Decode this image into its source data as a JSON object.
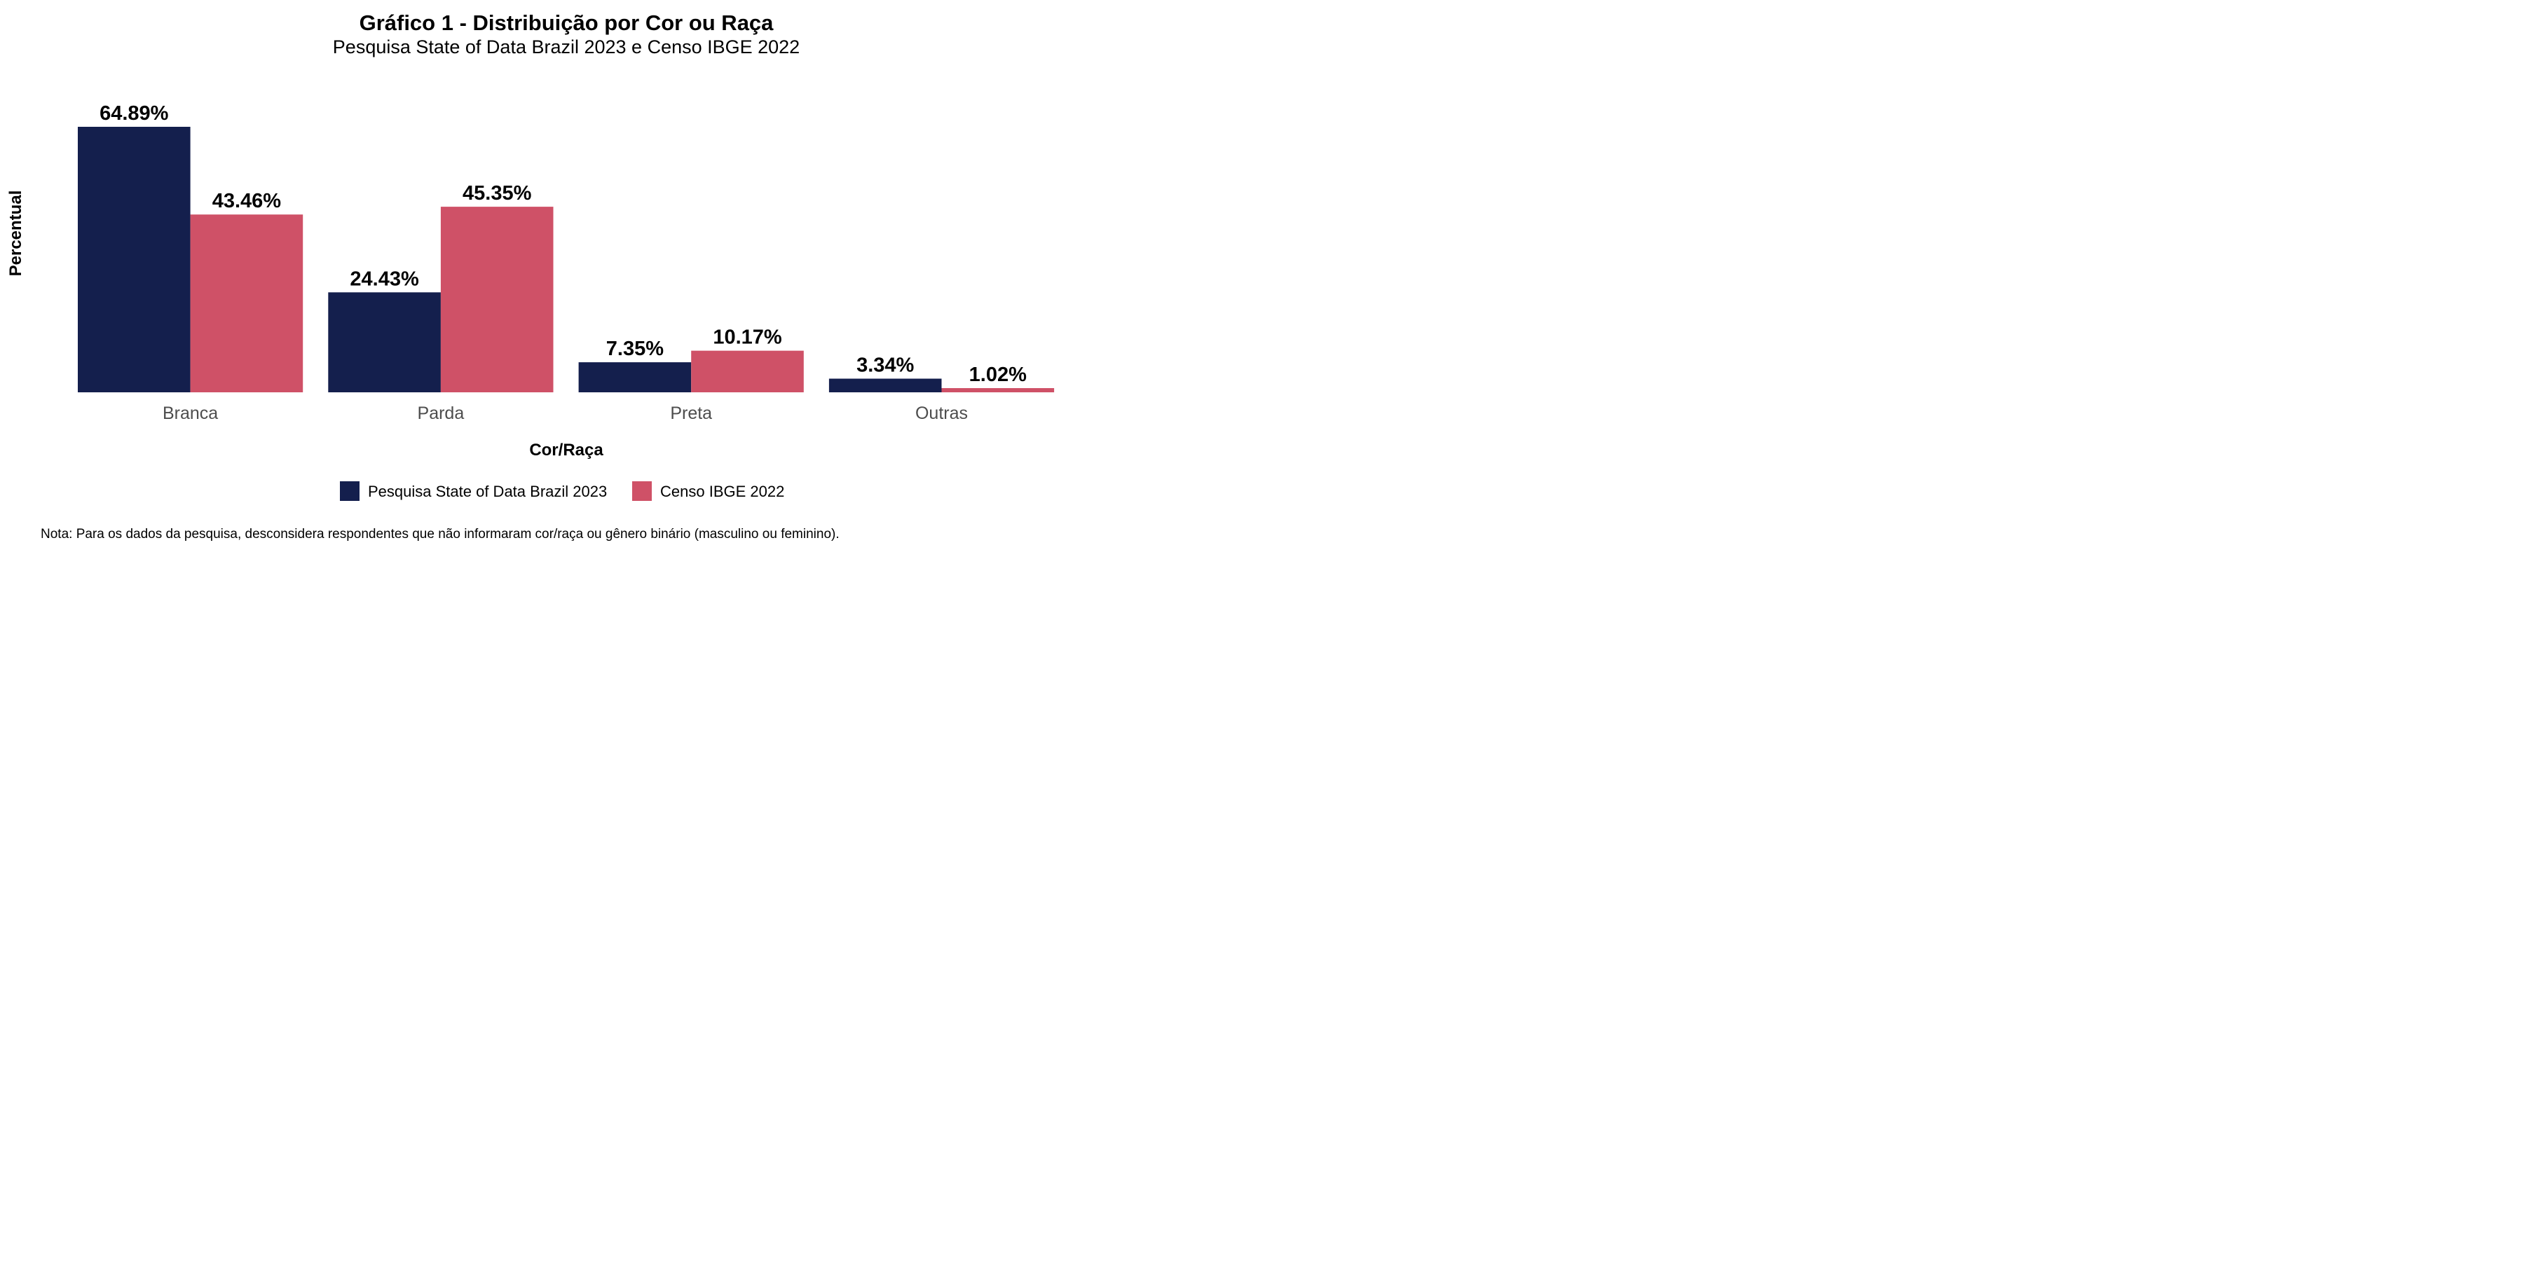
{
  "chart_data": {
    "type": "bar",
    "title": "Gráfico 1 - Distribuição por Cor ou Raça",
    "subtitle": "Pesquisa State of Data Brazil 2023 e Censo IBGE 2022",
    "xlabel": "Cor/Raça",
    "ylabel": "Percentual",
    "categories": [
      "Branca",
      "Parda",
      "Preta",
      "Outras"
    ],
    "series": [
      {
        "name": "Pesquisa State of Data Brazil 2023",
        "color": "#141f4d",
        "values": [
          64.89,
          24.43,
          7.35,
          3.34
        ],
        "labels": [
          "64.89%",
          "24.43%",
          "7.35%",
          "3.34%"
        ]
      },
      {
        "name": "Censo IBGE 2022",
        "color": "#cf5167",
        "values": [
          43.46,
          45.35,
          10.17,
          1.02
        ],
        "labels": [
          "43.46%",
          "45.35%",
          "10.17%",
          "1.02%"
        ]
      }
    ],
    "ylim": [
      0,
      65
    ],
    "grid": false,
    "legend_position": "bottom",
    "note": "Nota: Para os dados da pesquisa, desconsidera respondentes que não informaram cor/raça ou gênero binário (masculino ou feminino)."
  }
}
